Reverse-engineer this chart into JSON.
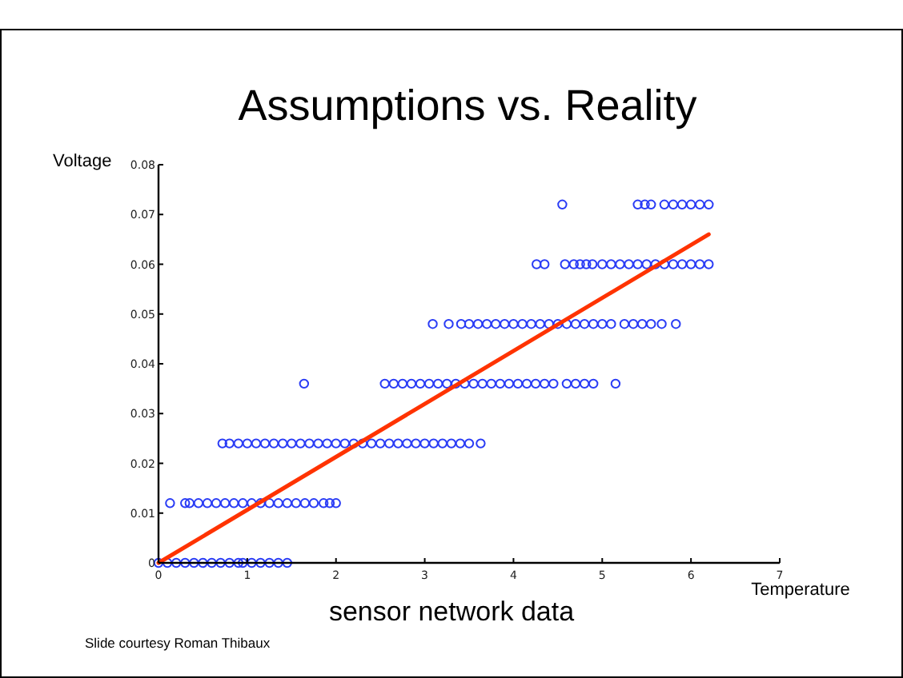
{
  "chart_data": {
    "type": "scatter",
    "title": "Assumptions vs. Reality",
    "xlabel": "Temperature",
    "ylabel": "Voltage",
    "annotations": [
      "sensor network data",
      "Slide courtesy Roman Thibaux"
    ],
    "xlim": [
      0,
      7
    ],
    "xticks": [
      0,
      1,
      2,
      3,
      4,
      5,
      6,
      7
    ],
    "ylim": [
      0,
      0.08
    ],
    "yticks": [
      0,
      0.01,
      0.02,
      0.03,
      0.04,
      0.05,
      0.06,
      0.07,
      0.08
    ],
    "grid": false,
    "marker": "circle",
    "series": [
      {
        "color": "#2a3cf5",
        "x": [
          0,
          0.1,
          0.2,
          0.3,
          0.4,
          0.5,
          0.6,
          0.7,
          0.8,
          0.9,
          0.95,
          1.05,
          1.15,
          1.25,
          1.35,
          1.45,
          0.13,
          0.3,
          0.35,
          0.45,
          0.55,
          0.65,
          0.75,
          0.85,
          0.95,
          1.05,
          1.15,
          1.25,
          1.35,
          1.45,
          1.55,
          1.65,
          1.75,
          1.86,
          1.93,
          2.0,
          0.72,
          0.8,
          0.9,
          1.0,
          1.1,
          1.2,
          1.3,
          1.4,
          1.5,
          1.6,
          1.7,
          1.8,
          1.9,
          2.0,
          2.1,
          2.2,
          2.3,
          2.4,
          2.5,
          2.6,
          2.7,
          2.8,
          2.9,
          3.0,
          3.1,
          3.2,
          3.3,
          3.4,
          3.5,
          3.63,
          1.64,
          2.55,
          2.65,
          2.75,
          2.85,
          2.95,
          3.05,
          3.15,
          3.25,
          3.35,
          3.45,
          3.55,
          3.65,
          3.75,
          3.85,
          3.95,
          4.05,
          4.15,
          4.25,
          4.35,
          4.45,
          4.6,
          4.7,
          4.8,
          4.9,
          5.15,
          3.09,
          3.27,
          3.41,
          3.5,
          3.6,
          3.7,
          3.8,
          3.9,
          4.0,
          4.1,
          4.2,
          4.3,
          4.4,
          4.5,
          4.6,
          4.7,
          4.8,
          4.9,
          5.0,
          5.1,
          5.25,
          5.35,
          5.45,
          5.55,
          5.67,
          5.83,
          4.26,
          4.35,
          4.58,
          4.68,
          4.75,
          4.82,
          4.89,
          5.0,
          5.1,
          5.2,
          5.3,
          5.4,
          5.5,
          5.6,
          5.7,
          5.8,
          5.9,
          6.0,
          6.1,
          6.2,
          4.55,
          5.4,
          5.48,
          5.55,
          5.7,
          5.8,
          5.9,
          6.0,
          6.1,
          6.2
        ],
        "values": [
          0,
          0,
          0,
          0,
          0,
          0,
          0,
          0,
          0,
          0,
          0,
          0,
          0,
          0,
          0,
          0,
          0.012,
          0.012,
          0.012,
          0.012,
          0.012,
          0.012,
          0.012,
          0.012,
          0.012,
          0.012,
          0.012,
          0.012,
          0.012,
          0.012,
          0.012,
          0.012,
          0.012,
          0.012,
          0.012,
          0.012,
          0.024,
          0.024,
          0.024,
          0.024,
          0.024,
          0.024,
          0.024,
          0.024,
          0.024,
          0.024,
          0.024,
          0.024,
          0.024,
          0.024,
          0.024,
          0.024,
          0.024,
          0.024,
          0.024,
          0.024,
          0.024,
          0.024,
          0.024,
          0.024,
          0.024,
          0.024,
          0.024,
          0.024,
          0.024,
          0.024,
          0.036,
          0.036,
          0.036,
          0.036,
          0.036,
          0.036,
          0.036,
          0.036,
          0.036,
          0.036,
          0.036,
          0.036,
          0.036,
          0.036,
          0.036,
          0.036,
          0.036,
          0.036,
          0.036,
          0.036,
          0.036,
          0.036,
          0.036,
          0.036,
          0.036,
          0.036,
          0.048,
          0.048,
          0.048,
          0.048,
          0.048,
          0.048,
          0.048,
          0.048,
          0.048,
          0.048,
          0.048,
          0.048,
          0.048,
          0.048,
          0.048,
          0.048,
          0.048,
          0.048,
          0.048,
          0.048,
          0.048,
          0.048,
          0.048,
          0.048,
          0.048,
          0.048,
          0.06,
          0.06,
          0.06,
          0.06,
          0.06,
          0.06,
          0.06,
          0.06,
          0.06,
          0.06,
          0.06,
          0.06,
          0.06,
          0.06,
          0.06,
          0.06,
          0.06,
          0.06,
          0.06,
          0.06,
          0.072,
          0.072,
          0.072,
          0.072,
          0.072,
          0.072,
          0.072,
          0.072,
          0.072,
          0.072
        ]
      },
      {
        "type": "line",
        "color": "#ff3300",
        "marker": "none",
        "line_style": "solid",
        "x": [
          0,
          6.2
        ],
        "values": [
          0,
          0.066
        ]
      }
    ]
  }
}
